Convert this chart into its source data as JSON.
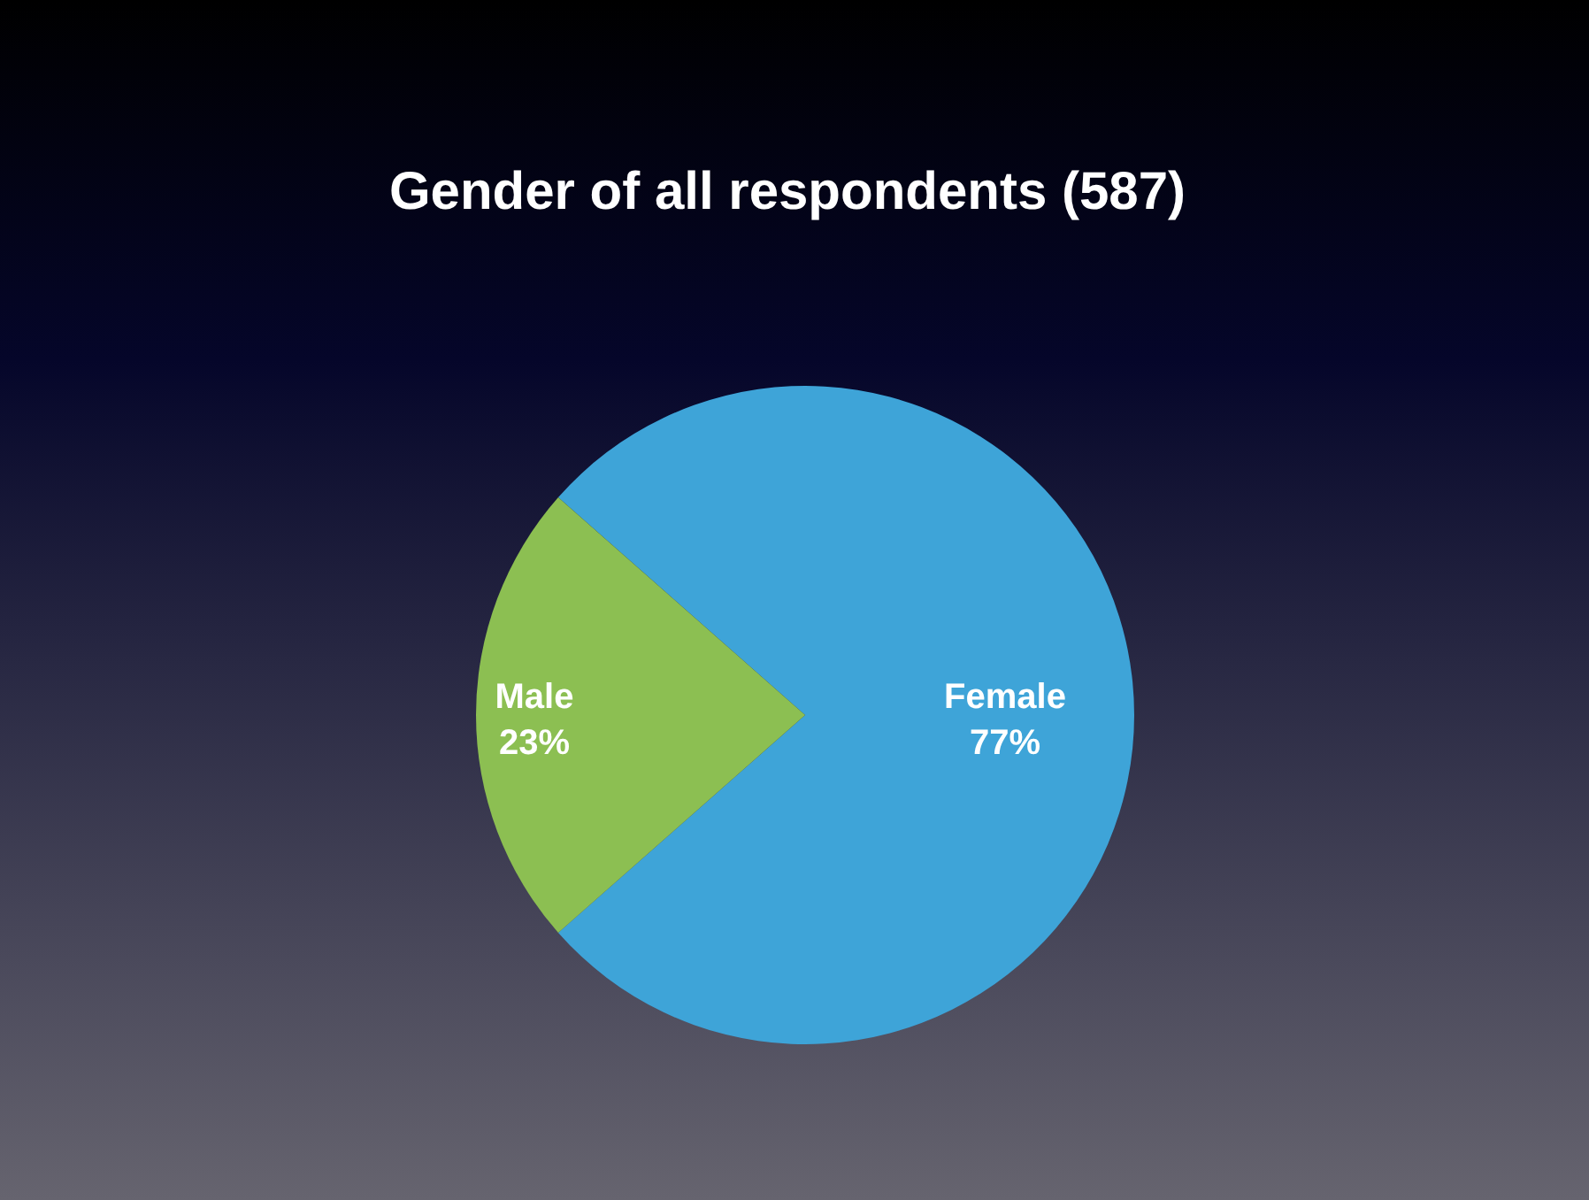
{
  "chart_data": {
    "type": "pie",
    "title": "Gender of all respondents (587)",
    "categories": [
      "Female",
      "Male"
    ],
    "values": [
      77,
      23
    ],
    "value_labels": [
      "77%",
      "23%"
    ],
    "colors": [
      "#3ea4d8",
      "#8cbf52"
    ]
  }
}
